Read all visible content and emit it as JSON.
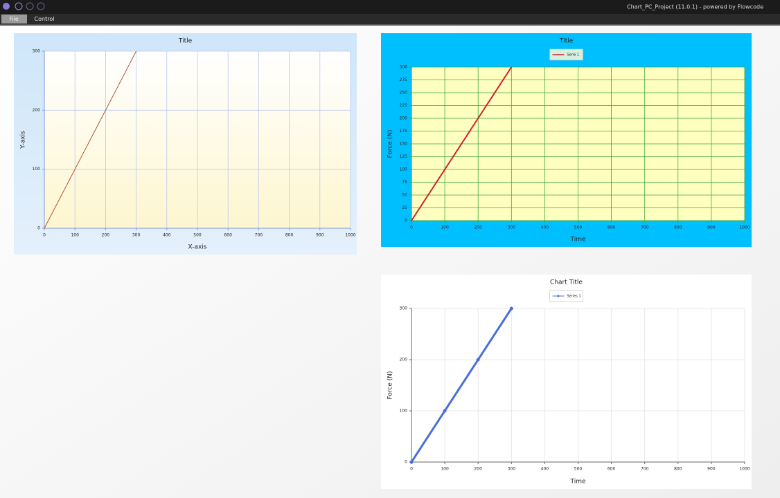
{
  "window": {
    "title": "Chart_PC_Project (11.0.1) - powered by Flowcode",
    "menu": [
      "File",
      "Control"
    ]
  },
  "chart_data": [
    {
      "type": "line",
      "title": "Title",
      "x_label": "X-axis",
      "y_label": "Y-axis",
      "x": [
        0,
        300
      ],
      "series": [
        {
          "color": "#b5533a",
          "values": [
            0,
            300
          ]
        }
      ],
      "xlim": [
        0,
        1000
      ],
      "xticks": [
        0,
        100,
        200,
        300,
        400,
        500,
        600,
        700,
        800,
        900,
        1000
      ],
      "ylim": [
        0,
        300
      ],
      "yticks": [
        0,
        100,
        200,
        300
      ],
      "grid": true
    },
    {
      "type": "line",
      "title": "Title",
      "x_label": "Time",
      "y_label": "Force (N)",
      "x": [
        0,
        300
      ],
      "series": [
        {
          "name": "Serie 1",
          "color": "#d0202e",
          "values": [
            0,
            300
          ]
        }
      ],
      "xlim": [
        0,
        1000
      ],
      "xticks": [
        0,
        100,
        200,
        300,
        400,
        500,
        600,
        700,
        800,
        900,
        1000
      ],
      "ylim": [
        0,
        300
      ],
      "yticks": [
        0,
        25,
        50,
        75,
        100,
        125,
        150,
        175,
        200,
        225,
        250,
        275,
        300
      ],
      "grid": true,
      "legend": "top"
    },
    {
      "type": "line",
      "title": "Chart Title",
      "x_label": "Time",
      "y_label": "Force (N)",
      "x": [
        0,
        100,
        200,
        300
      ],
      "series": [
        {
          "name": "Series 1",
          "color": "#4a6fd8",
          "values": [
            0,
            100,
            200,
            300
          ]
        }
      ],
      "xlim": [
        0,
        1000
      ],
      "xticks": [
        0,
        100,
        200,
        300,
        400,
        500,
        600,
        700,
        800,
        900,
        1000
      ],
      "ylim": [
        0,
        300
      ],
      "yticks": [
        0,
        100,
        200,
        300
      ],
      "grid": true,
      "legend": "top",
      "markers": true
    }
  ]
}
